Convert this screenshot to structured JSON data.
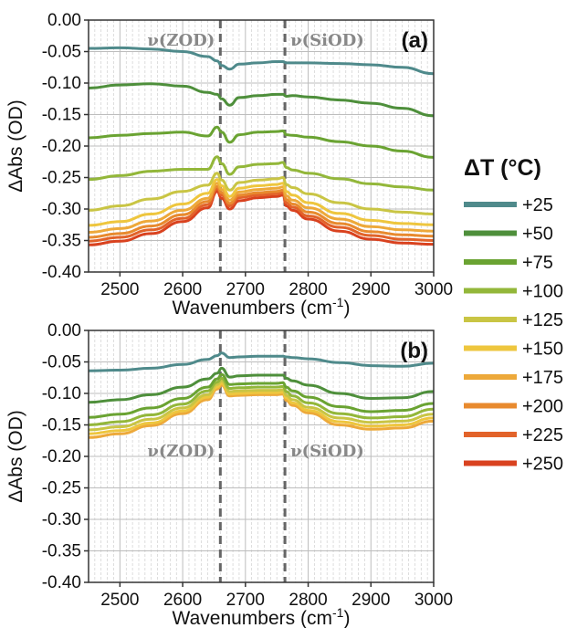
{
  "legend": {
    "title": "ΔT (°C)",
    "entries": [
      "+25",
      "+50",
      "+75",
      "+100",
      "+125",
      "+150",
      "+175",
      "+200",
      "+225",
      "+250"
    ],
    "colors": [
      "#4f8a8b",
      "#4e8f3b",
      "#6aa332",
      "#93b73a",
      "#c9c544",
      "#eec63e",
      "#eda93a",
      "#e88a2e",
      "#e2632a",
      "#d9421f"
    ]
  },
  "chart_data": [
    {
      "type": "line",
      "panel_label": "(a)",
      "xlabel": "Wavenumbers (cm",
      "xlabel_sup": "-1",
      "xlabel_end": ")",
      "ylabel": "ΔAbs (OD)",
      "xlim": [
        2450,
        3000
      ],
      "ylim": [
        -0.4,
        0.0
      ],
      "xticks": [
        "2500",
        "2600",
        "2700",
        "2800",
        "2900",
        "3000"
      ],
      "yticks": [
        "0.00",
        "-0.05",
        "-0.10",
        "-0.15",
        "-0.20",
        "-0.25",
        "-0.30",
        "-0.35",
        "-0.40"
      ],
      "grid": true,
      "vlines": [
        2660,
        2763
      ],
      "annotations": [
        "ν(ZOD)",
        "ν(SiOD)"
      ],
      "x": [
        2450,
        2500,
        2550,
        2600,
        2640,
        2655,
        2662,
        2675,
        2690,
        2720,
        2750,
        2760,
        2765,
        2775,
        2800,
        2850,
        2900,
        2950,
        3000
      ],
      "series": [
        {
          "name": "+25",
          "values": [
            -0.045,
            -0.044,
            -0.046,
            -0.05,
            -0.058,
            -0.065,
            -0.072,
            -0.078,
            -0.07,
            -0.068,
            -0.066,
            -0.066,
            -0.068,
            -0.068,
            -0.068,
            -0.069,
            -0.071,
            -0.075,
            -0.085
          ]
        },
        {
          "name": "+50",
          "values": [
            -0.108,
            -0.103,
            -0.101,
            -0.105,
            -0.115,
            -0.118,
            -0.125,
            -0.135,
            -0.123,
            -0.12,
            -0.118,
            -0.118,
            -0.121,
            -0.12,
            -0.122,
            -0.127,
            -0.132,
            -0.14,
            -0.152
          ]
        },
        {
          "name": "+75",
          "values": [
            -0.187,
            -0.183,
            -0.18,
            -0.178,
            -0.184,
            -0.17,
            -0.178,
            -0.194,
            -0.182,
            -0.178,
            -0.177,
            -0.176,
            -0.182,
            -0.183,
            -0.186,
            -0.193,
            -0.2,
            -0.208,
            -0.218
          ]
        },
        {
          "name": "+100",
          "values": [
            -0.253,
            -0.247,
            -0.24,
            -0.237,
            -0.237,
            -0.217,
            -0.228,
            -0.245,
            -0.233,
            -0.229,
            -0.228,
            -0.226,
            -0.234,
            -0.238,
            -0.243,
            -0.252,
            -0.26,
            -0.265,
            -0.27
          ]
        },
        {
          "name": "+125",
          "values": [
            -0.302,
            -0.295,
            -0.284,
            -0.272,
            -0.262,
            -0.243,
            -0.254,
            -0.27,
            -0.258,
            -0.254,
            -0.252,
            -0.25,
            -0.261,
            -0.266,
            -0.276,
            -0.29,
            -0.3,
            -0.305,
            -0.308
          ]
        },
        {
          "name": "+150",
          "values": [
            -0.326,
            -0.32,
            -0.308,
            -0.292,
            -0.275,
            -0.253,
            -0.263,
            -0.28,
            -0.267,
            -0.263,
            -0.261,
            -0.259,
            -0.272,
            -0.278,
            -0.29,
            -0.307,
            -0.318,
            -0.323,
            -0.325
          ]
        },
        {
          "name": "+175",
          "values": [
            -0.337,
            -0.331,
            -0.319,
            -0.302,
            -0.283,
            -0.259,
            -0.269,
            -0.286,
            -0.273,
            -0.269,
            -0.267,
            -0.265,
            -0.279,
            -0.286,
            -0.298,
            -0.316,
            -0.328,
            -0.333,
            -0.335
          ]
        },
        {
          "name": "+200",
          "values": [
            -0.345,
            -0.339,
            -0.327,
            -0.309,
            -0.288,
            -0.264,
            -0.274,
            -0.291,
            -0.278,
            -0.274,
            -0.272,
            -0.27,
            -0.285,
            -0.292,
            -0.305,
            -0.323,
            -0.336,
            -0.341,
            -0.343
          ]
        },
        {
          "name": "+225",
          "values": [
            -0.351,
            -0.345,
            -0.333,
            -0.315,
            -0.293,
            -0.268,
            -0.278,
            -0.295,
            -0.282,
            -0.278,
            -0.276,
            -0.274,
            -0.29,
            -0.297,
            -0.311,
            -0.329,
            -0.342,
            -0.348,
            -0.35
          ]
        },
        {
          "name": "+250",
          "values": [
            -0.357,
            -0.351,
            -0.339,
            -0.32,
            -0.298,
            -0.272,
            -0.283,
            -0.3,
            -0.287,
            -0.282,
            -0.28,
            -0.278,
            -0.295,
            -0.302,
            -0.316,
            -0.335,
            -0.348,
            -0.354,
            -0.356
          ]
        }
      ]
    },
    {
      "type": "line",
      "panel_label": "(b)",
      "xlabel": "Wavenumbers (cm",
      "xlabel_sup": "-1",
      "xlabel_end": ")",
      "ylabel": "ΔAbs (OD)",
      "xlim": [
        2450,
        3000
      ],
      "ylim": [
        -0.4,
        0.0
      ],
      "xticks": [
        "2500",
        "2600",
        "2700",
        "2800",
        "2900",
        "3000"
      ],
      "yticks": [
        "0.00",
        "-0.05",
        "-0.10",
        "-0.15",
        "-0.20",
        "-0.25",
        "-0.30",
        "-0.35",
        "-0.40"
      ],
      "grid": true,
      "vlines": [
        2660,
        2763
      ],
      "annotations": [
        "ν(ZOD)",
        "ν(SiOD)"
      ],
      "x": [
        2450,
        2500,
        2550,
        2600,
        2640,
        2655,
        2662,
        2675,
        2690,
        2720,
        2750,
        2760,
        2765,
        2775,
        2800,
        2850,
        2900,
        2950,
        3000
      ],
      "series": [
        {
          "name": "+25",
          "values": [
            -0.064,
            -0.063,
            -0.06,
            -0.054,
            -0.046,
            -0.04,
            -0.036,
            -0.043,
            -0.042,
            -0.041,
            -0.041,
            -0.041,
            -0.042,
            -0.043,
            -0.045,
            -0.051,
            -0.056,
            -0.057,
            -0.052
          ]
        },
        {
          "name": "+50",
          "values": [
            -0.114,
            -0.11,
            -0.102,
            -0.09,
            -0.077,
            -0.068,
            -0.06,
            -0.074,
            -0.072,
            -0.071,
            -0.071,
            -0.071,
            -0.076,
            -0.08,
            -0.087,
            -0.1,
            -0.108,
            -0.107,
            -0.097
          ]
        },
        {
          "name": "+75",
          "values": [
            -0.138,
            -0.133,
            -0.123,
            -0.108,
            -0.09,
            -0.077,
            -0.07,
            -0.086,
            -0.085,
            -0.084,
            -0.084,
            -0.083,
            -0.09,
            -0.096,
            -0.106,
            -0.121,
            -0.129,
            -0.127,
            -0.116
          ]
        },
        {
          "name": "+100",
          "values": [
            -0.15,
            -0.145,
            -0.134,
            -0.117,
            -0.096,
            -0.082,
            -0.076,
            -0.092,
            -0.091,
            -0.09,
            -0.09,
            -0.089,
            -0.097,
            -0.104,
            -0.115,
            -0.132,
            -0.139,
            -0.137,
            -0.125
          ]
        },
        {
          "name": "+125",
          "values": [
            -0.158,
            -0.153,
            -0.141,
            -0.123,
            -0.102,
            -0.086,
            -0.08,
            -0.097,
            -0.096,
            -0.095,
            -0.095,
            -0.094,
            -0.103,
            -0.11,
            -0.122,
            -0.139,
            -0.146,
            -0.144,
            -0.133
          ]
        },
        {
          "name": "+150",
          "values": [
            -0.164,
            -0.159,
            -0.147,
            -0.128,
            -0.106,
            -0.09,
            -0.084,
            -0.101,
            -0.1,
            -0.099,
            -0.099,
            -0.098,
            -0.107,
            -0.115,
            -0.127,
            -0.145,
            -0.152,
            -0.15,
            -0.139
          ]
        },
        {
          "name": "+175",
          "values": [
            -0.17,
            -0.164,
            -0.151,
            -0.132,
            -0.11,
            -0.093,
            -0.087,
            -0.104,
            -0.103,
            -0.102,
            -0.102,
            -0.101,
            -0.111,
            -0.119,
            -0.131,
            -0.15,
            -0.157,
            -0.155,
            -0.144
          ]
        }
      ]
    }
  ]
}
